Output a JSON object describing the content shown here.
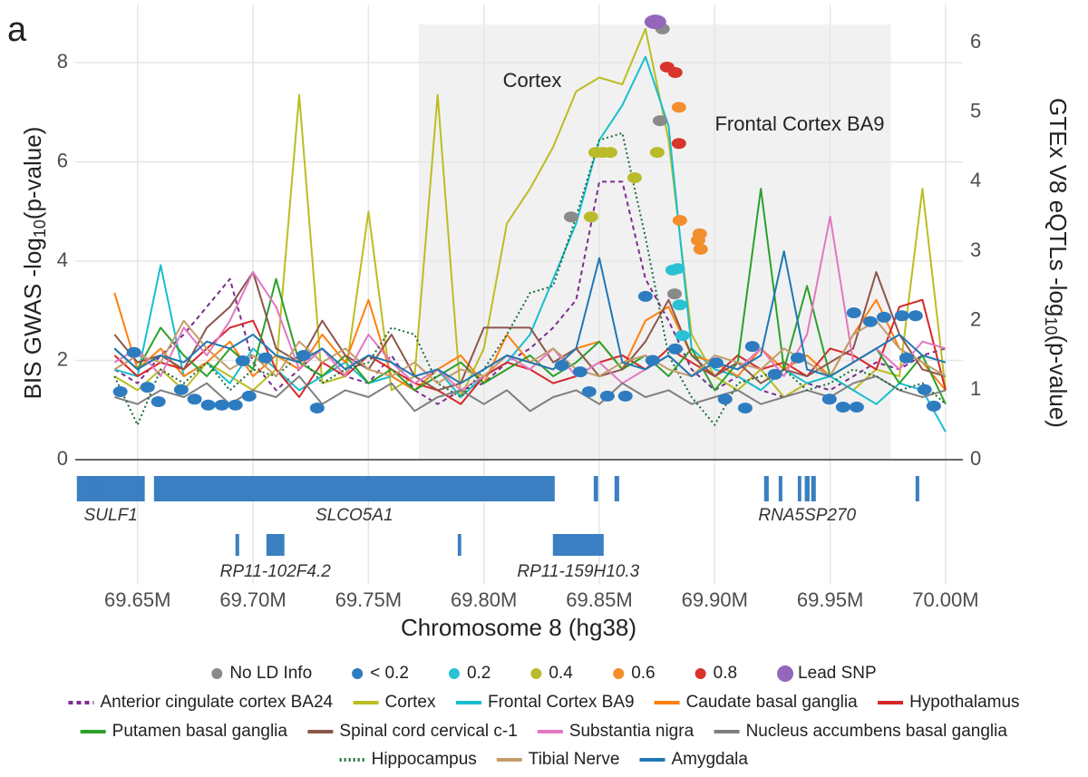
{
  "chart_data": {
    "type": "line",
    "panel_label": "a",
    "x_label": "Chromosome 8 (hg38)",
    "y_label": {
      "prefix": "BIS GWAS -log",
      "sub": "10",
      "suffix": "(p-value)"
    },
    "y2_label": {
      "prefix": "GTEx V8 eQTLs -log",
      "sub": "10",
      "suffix": "(p-value)"
    },
    "annotations": [
      "Cortex",
      "Frontal Cortex BA9"
    ],
    "xlim": [
      69623000,
      70007500
    ],
    "xticks": [
      {
        "value": 69650000,
        "label": "69.65M"
      },
      {
        "value": 69700000,
        "label": "69.70M"
      },
      {
        "value": 69750000,
        "label": "69.75M"
      },
      {
        "value": 69800000,
        "label": "69.80M"
      },
      {
        "value": 69850000,
        "label": "69.85M"
      },
      {
        "value": 69900000,
        "label": "69.90M"
      },
      {
        "value": 69950000,
        "label": "69.95M"
      },
      {
        "value": 70000000,
        "label": "70.00M"
      }
    ],
    "ylim": [
      0,
      9.17
    ],
    "yticks": [
      0,
      2,
      4,
      6,
      8
    ],
    "y2lim": [
      0,
      6.55
    ],
    "y2ticks": [
      0,
      1,
      2,
      3,
      4,
      5,
      6
    ],
    "grid": true,
    "highlight_xlim": [
      69771800,
      69976400
    ],
    "highlight_ylim": [
      0,
      8.77
    ],
    "x": [
      69640000,
      69650000,
      69660000,
      69670000,
      69680000,
      69690000,
      69700000,
      69710000,
      69720000,
      69730000,
      69740000,
      69750000,
      69760000,
      69770000,
      69780000,
      69790000,
      69800000,
      69810000,
      69820000,
      69830000,
      69840000,
      69850000,
      69860000,
      69870000,
      69880000,
      69890000,
      69900000,
      69910000,
      69920000,
      69930000,
      69940000,
      69950000,
      69960000,
      69970000,
      69980000,
      69990000,
      70000000
    ],
    "series": [
      {
        "name": "Anterior cingulate cortex BA24",
        "color": "#7b2d8e",
        "dash": "dashed",
        "axis": "y2",
        "values": [
          1.3,
          1.1,
          1.5,
          1.8,
          2.2,
          2.6,
          1.4,
          1.0,
          1.3,
          1.6,
          1.2,
          1.1,
          1.5,
          1.0,
          0.8,
          1.0,
          1.1,
          1.4,
          1.6,
          1.9,
          2.3,
          4.0,
          4.0,
          2.6,
          2.0,
          1.3,
          1.0,
          1.2,
          1.0,
          0.9,
          1.1,
          1.0,
          1.2,
          1.4,
          1.3,
          1.5,
          1.6
        ]
      },
      {
        "name": "Cortex",
        "color": "#bcbd22",
        "dash": "solid",
        "axis": "y2",
        "values": [
          1.2,
          1.0,
          1.3,
          1.0,
          1.4,
          1.2,
          1.0,
          1.3,
          5.25,
          1.1,
          1.2,
          3.57,
          1.0,
          1.2,
          5.25,
          0.9,
          1.6,
          3.4,
          3.9,
          4.5,
          5.3,
          5.5,
          5.4,
          6.2,
          4.6,
          1.8,
          1.2,
          1.0,
          1.3,
          0.9,
          1.1,
          1.2,
          1.0,
          1.3,
          1.2,
          3.9,
          1.0
        ]
      },
      {
        "name": "Frontal Cortex BA9",
        "color": "#17becf",
        "dash": "solid",
        "axis": "y2",
        "values": [
          1.3,
          1.2,
          2.8,
          1.2,
          1.4,
          1.1,
          1.6,
          1.3,
          1.0,
          1.2,
          1.4,
          1.1,
          1.2,
          1.0,
          1.3,
          0.9,
          1.2,
          1.4,
          1.8,
          2.6,
          3.4,
          4.6,
          5.1,
          5.8,
          4.8,
          1.6,
          1.3,
          1.2,
          1.0,
          1.3,
          1.1,
          1.2,
          1.0,
          0.8,
          1.1,
          1.0,
          0.4
        ]
      },
      {
        "name": "Caudate basal ganglia",
        "color": "#ff7f0e",
        "dash": "solid",
        "axis": "y2",
        "values": [
          2.4,
          1.3,
          1.6,
          1.2,
          1.4,
          1.7,
          1.2,
          1.5,
          1.3,
          1.8,
          1.4,
          2.3,
          1.2,
          1.0,
          1.3,
          1.5,
          1.1,
          1.8,
          1.4,
          1.3,
          1.6,
          1.7,
          1.3,
          2.0,
          2.2,
          1.5,
          1.4,
          1.2,
          1.6,
          1.3,
          1.5,
          1.2,
          1.8,
          2.3,
          1.6,
          1.4,
          1.0
        ]
      },
      {
        "name": "Hypothalamus",
        "color": "#d62728",
        "dash": "solid",
        "axis": "y2",
        "values": [
          1.5,
          1.2,
          1.4,
          1.3,
          1.6,
          1.9,
          2.0,
          1.3,
          0.9,
          1.4,
          1.2,
          1.5,
          1.3,
          1.1,
          1.0,
          0.8,
          1.2,
          1.4,
          1.3,
          1.1,
          1.2,
          1.4,
          1.5,
          1.3,
          1.6,
          1.4,
          1.2,
          1.5,
          1.3,
          1.4,
          1.2,
          1.6,
          1.5,
          1.3,
          2.2,
          2.3,
          1.0
        ]
      },
      {
        "name": "Putamen basal ganglia",
        "color": "#2ca02c",
        "dash": "solid",
        "axis": "y2",
        "values": [
          1.6,
          1.3,
          1.9,
          1.5,
          1.2,
          1.6,
          1.3,
          2.6,
          1.4,
          1.2,
          1.5,
          1.1,
          1.3,
          1.0,
          1.2,
          1.4,
          1.1,
          1.3,
          1.5,
          1.2,
          1.4,
          1.7,
          1.3,
          1.5,
          1.2,
          1.6,
          1.0,
          1.4,
          3.9,
          1.3,
          2.5,
          1.2,
          1.4,
          1.6,
          1.1,
          1.5,
          0.8
        ]
      },
      {
        "name": "Spinal cord cervical c-1",
        "color": "#8c564b",
        "dash": "solid",
        "axis": "y2",
        "values": [
          1.8,
          1.4,
          1.5,
          1.3,
          1.9,
          2.2,
          2.7,
          1.6,
          1.4,
          2.0,
          1.5,
          1.3,
          1.8,
          1.2,
          1.0,
          1.1,
          1.9,
          1.9,
          1.9,
          1.4,
          1.6,
          1.2,
          1.3,
          1.7,
          2.3,
          1.5,
          1.2,
          1.4,
          1.1,
          1.3,
          1.2,
          1.4,
          1.6,
          2.7,
          1.8,
          1.3,
          1.2
        ]
      },
      {
        "name": "Substantia nigra",
        "color": "#e377c2",
        "dash": "solid",
        "axis": "y2",
        "values": [
          1.4,
          1.6,
          1.2,
          1.9,
          1.5,
          2.0,
          2.7,
          2.2,
          1.3,
          1.6,
          1.2,
          1.8,
          1.4,
          1.1,
          1.3,
          1.0,
          1.2,
          1.5,
          1.3,
          1.6,
          1.2,
          1.4,
          1.1,
          1.3,
          1.5,
          1.2,
          1.4,
          1.3,
          1.6,
          1.2,
          1.8,
          3.5,
          1.4,
          1.6,
          1.3,
          1.7,
          1.6
        ]
      },
      {
        "name": "Nucleus accumbens basal ganglia",
        "color": "#7f7f7f",
        "dash": "solid",
        "axis": "y2",
        "values": [
          0.9,
          0.8,
          1.0,
          0.9,
          1.1,
          0.8,
          1.0,
          0.9,
          1.2,
          0.8,
          1.0,
          0.9,
          1.1,
          0.7,
          0.9,
          1.0,
          0.8,
          1.0,
          0.7,
          0.9,
          1.0,
          0.8,
          1.1,
          0.9,
          1.0,
          0.8,
          0.9,
          1.0,
          0.8,
          0.9,
          1.0,
          0.9,
          1.1,
          1.2,
          1.0,
          0.9,
          1.0
        ]
      },
      {
        "name": "Hippocampus",
        "color": "#1b6b3a",
        "dash": "dotted",
        "axis": "y2",
        "values": [
          1.2,
          0.5,
          1.3,
          1.1,
          1.4,
          1.0,
          1.3,
          1.2,
          1.5,
          1.1,
          1.3,
          1.4,
          1.9,
          1.8,
          1.1,
          0.9,
          1.3,
          1.8,
          2.4,
          2.5,
          3.5,
          4.6,
          4.7,
          3.2,
          1.5,
          0.9,
          0.5,
          1.1,
          1.2,
          1.3,
          1.0,
          1.1,
          1.3,
          1.2,
          1.0,
          1.1,
          0.8
        ]
      },
      {
        "name": "Tibial Nerve",
        "color": "#c49c6b",
        "dash": "solid",
        "axis": "y2",
        "values": [
          1.3,
          1.5,
          1.4,
          2.0,
          1.6,
          1.3,
          1.5,
          1.2,
          1.7,
          1.4,
          1.6,
          1.3,
          1.2,
          1.4,
          1.1,
          1.3,
          1.2,
          1.5,
          1.4,
          1.6,
          1.3,
          1.2,
          1.4,
          1.5,
          1.3,
          1.2,
          1.5,
          1.4,
          1.3,
          1.6,
          1.4,
          1.2,
          1.8,
          2.0,
          1.6,
          1.4,
          1.2
        ]
      },
      {
        "name": "Amygdala",
        "color": "#1f77b4",
        "dash": "solid",
        "axis": "y2",
        "values": [
          1.6,
          1.3,
          1.5,
          1.4,
          1.7,
          1.6,
          1.8,
          1.5,
          1.4,
          1.6,
          1.3,
          1.5,
          1.4,
          1.2,
          1.3,
          1.1,
          1.3,
          1.5,
          1.4,
          1.3,
          1.6,
          2.9,
          1.4,
          1.3,
          1.5,
          1.2,
          1.4,
          1.3,
          1.5,
          3.0,
          1.3,
          1.2,
          1.4,
          1.6,
          1.8,
          1.5,
          1.4
        ]
      }
    ],
    "ld_classes": [
      {
        "name": "No LD Info",
        "color": "#8a8a8a"
      },
      {
        "name": "< 0.2",
        "color": "#2e7cc0"
      },
      {
        "name": "0.2",
        "color": "#2bc1d4"
      },
      {
        "name": "0.4",
        "color": "#b9bb2a"
      },
      {
        "name": "0.6",
        "color": "#f28e2b"
      },
      {
        "name": "0.8",
        "color": "#d9342b"
      },
      {
        "name": "Lead SNP",
        "color": "#9467bd"
      }
    ],
    "points": {
      "type": "scatter",
      "x": [
        69874300,
        69877400,
        69876300,
        69837800,
        69882600,
        69879400,
        69882900,
        69884500,
        69884500,
        69884900,
        69893500,
        69893900,
        69892800,
        69846400,
        69848400,
        69851500,
        69854700,
        69865300,
        69875100,
        69881800,
        69884000,
        69884800,
        69886000,
        69642500,
        69648400,
        69654300,
        69659000,
        69668900,
        69674700,
        69680600,
        69686500,
        69692400,
        69698300,
        69695600,
        69705400,
        69721900,
        69727800,
        69833800,
        69841700,
        69845600,
        69853500,
        69861300,
        69870000,
        69873100,
        69882900,
        69900600,
        69904500,
        69913200,
        69916300,
        69926100,
        69936000,
        69949700,
        69955600,
        69961500,
        69960300,
        69967400,
        69973300,
        69981100,
        69987000,
        69990900,
        69994900,
        69983100
      ],
      "y": [
        8.82,
        8.68,
        6.83,
        4.89,
        3.34,
        7.91,
        7.8,
        6.37,
        7.1,
        4.82,
        4.55,
        4.24,
        4.42,
        4.89,
        6.19,
        6.19,
        6.19,
        5.68,
        6.19,
        3.82,
        3.85,
        3.12,
        2.5,
        1.37,
        2.16,
        1.46,
        1.17,
        1.41,
        1.22,
        1.1,
        1.1,
        1.1,
        1.28,
        1.99,
        2.05,
        2.1,
        1.04,
        1.9,
        1.77,
        1.37,
        1.28,
        1.28,
        3.29,
        2.0,
        2.23,
        1.95,
        1.22,
        1.04,
        2.28,
        1.72,
        2.05,
        1.22,
        1.06,
        1.06,
        2.96,
        2.78,
        2.87,
        2.9,
        2.9,
        1.41,
        1.08,
        2.05
      ],
      "ld": [
        "Lead SNP",
        "No LD Info",
        "No LD Info",
        "No LD Info",
        "No LD Info",
        "0.8",
        "0.8",
        "0.8",
        "0.6",
        "0.6",
        "0.6",
        "0.6",
        "0.6",
        "0.4",
        "0.4",
        "0.4",
        "0.4",
        "0.4",
        "0.4",
        "0.2",
        "0.2",
        "0.2",
        "0.2",
        "< 0.2",
        "< 0.2",
        "< 0.2",
        "< 0.2",
        "< 0.2",
        "< 0.2",
        "< 0.2",
        "< 0.2",
        "< 0.2",
        "< 0.2",
        "< 0.2",
        "< 0.2",
        "< 0.2",
        "< 0.2",
        "< 0.2",
        "< 0.2",
        "< 0.2",
        "< 0.2",
        "< 0.2",
        "< 0.2",
        "< 0.2",
        "< 0.2",
        "< 0.2",
        "< 0.2",
        "< 0.2",
        "< 0.2",
        "< 0.2",
        "< 0.2",
        "< 0.2",
        "< 0.2",
        "< 0.2",
        "< 0.2",
        "< 0.2",
        "< 0.2",
        "< 0.2",
        "< 0.2",
        "< 0.2",
        "< 0.2",
        "< 0.2"
      ]
    },
    "gene_color": "#3a7fc1",
    "gene_track": [
      [
        {
          "name": "SULF1",
          "exons": [
            [
              69623700,
              69653100
            ],
            [
              69629600,
              69630300
            ],
            [
              69631900,
              69632600
            ],
            [
              69633500,
              69634200
            ]
          ]
        },
        {
          "name": "SLCO5A1",
          "exons": [
            [
              69657100,
              69830700
            ],
            [
              69847600,
              69849500
            ],
            [
              69856600,
              69858600
            ]
          ]
        },
        {
          "name": "RNA5SP270",
          "exons": [
            [
              69921400,
              69923400
            ],
            [
              69927700,
              69929300
            ],
            [
              69936000,
              69937500
            ],
            [
              69939000,
              69941100
            ],
            [
              69941800,
              69943800
            ],
            [
              69987000,
              69988600
            ]
          ]
        }
      ],
      [
        {
          "name": "RP11-102F4.2",
          "exons": [
            [
              69692400,
              69694000
            ],
            [
              69705800,
              69713600
            ]
          ]
        },
        {
          "name": "RP11-159H10.3",
          "exons": [
            [
              69788700,
              69790200
            ],
            [
              69829900,
              69851900
            ]
          ]
        }
      ]
    ]
  }
}
